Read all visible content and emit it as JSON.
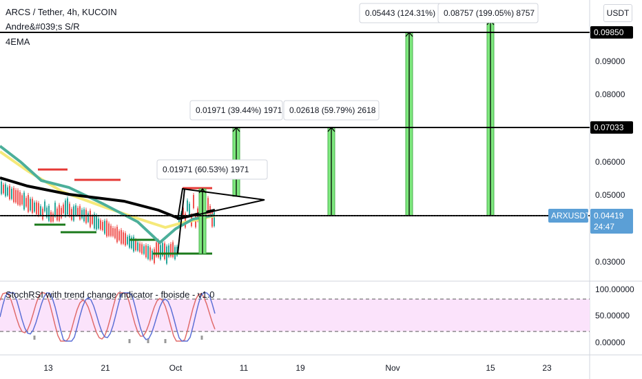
{
  "header": {
    "symbol_line": "ARCS / Tether, 4h, KUCOIN",
    "indicator_1": "Andre&#039;s S/R",
    "indicator_2": "4EMA"
  },
  "currency_button": "USDT",
  "indicator_panel": {
    "label": "StochRSI with trend change indicator - fboisde - v1.0",
    "ticks": [
      "100.00000",
      "50.00000",
      "0.00000"
    ]
  },
  "colors": {
    "ema_fast": "#4caf9a",
    "ema_mid": "#f5e97a",
    "ema_slow": "#000000",
    "sr_red": "#e53935",
    "sr_green": "#1b7a1b",
    "target_fill": "#7ee87e",
    "price_tag": "#5b9fd6",
    "stoch_k": "#5b6fd6",
    "stoch_d": "#e06b6b",
    "stoch_band": "#fbe3fb"
  },
  "chart_data": {
    "type": "line",
    "symbol": "ARXUSDT",
    "y_ticks": [
      "0.09000",
      "0.08000",
      "0.06000",
      "0.05000",
      "0.03000"
    ],
    "x_ticks": [
      "13",
      "21",
      "Oct",
      "11",
      "19",
      "Nov",
      "15",
      "23"
    ],
    "horizontal_levels": [
      {
        "price": 0.0985,
        "label": "0.09850"
      },
      {
        "price": 0.07033,
        "label": "0.07033"
      },
      {
        "price": 0.04399,
        "label": "0.04399"
      }
    ],
    "current_price": {
      "label": "ARXUSDT",
      "value": "0.04419",
      "countdown": "24:47"
    },
    "annotations": [
      {
        "text": "0.01971 (60.53%) 1971"
      },
      {
        "text": "0.01971 (39.44%) 1971"
      },
      {
        "text": "0.02618 (59.79%) 2618"
      },
      {
        "text": "0.05443 (124.31%) 5"
      },
      {
        "text": "0.08757 (199.05%) 8757"
      }
    ]
  }
}
